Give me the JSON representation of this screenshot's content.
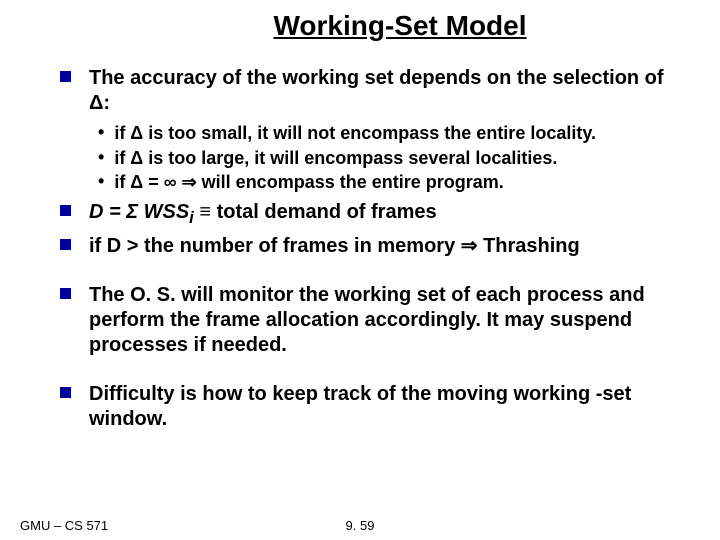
{
  "title": "Working-Set Model",
  "bullets": {
    "b1": "The accuracy of the working set  depends on the selection of Δ:",
    "b1_sub1": "if Δ is too small, it  will not encompass the entire locality.",
    "b1_sub2": "if Δ  is too large, it will encompass several localities.",
    "b1_sub3": "if Δ = ∞ ⇒ will encompass the entire program.",
    "b2_pre": "D = Σ WSS",
    "b2_sub": "i",
    "b2_post": " ≡ total demand of frames",
    "b3": "if D > the number of frames in memory ⇒ Thrashing",
    "b4": "The O. S. will monitor the working set of each process and perform the frame allocation accordingly.  It may suspend processes if needed.",
    "b5": "Difficulty is how to keep track of the moving working -set window."
  },
  "footer": {
    "left": "GMU – CS 571",
    "center": "9. 59"
  },
  "colors": {
    "bullet_square": "#000099",
    "text": "#000000",
    "background": "#ffffff"
  }
}
